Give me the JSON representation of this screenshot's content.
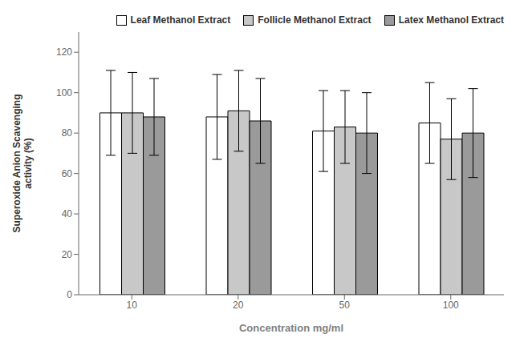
{
  "chart_data": {
    "type": "bar",
    "categories": [
      "10",
      "20",
      "50",
      "100"
    ],
    "series": [
      {
        "name": "Leaf Methanol Extract",
        "color": "#ffffff",
        "values": [
          90,
          88,
          81,
          85
        ],
        "errors": [
          21,
          21,
          20,
          20
        ]
      },
      {
        "name": "Follicle Methanol Extract",
        "color": "#c8c8c8",
        "values": [
          90,
          91,
          83,
          77
        ],
        "errors": [
          20,
          20,
          18,
          20
        ]
      },
      {
        "name": "Latex Methanol Extract",
        "color": "#9a9a9a",
        "values": [
          88,
          86,
          80,
          80
        ],
        "errors": [
          19,
          21,
          20,
          22
        ]
      }
    ],
    "xlabel": "Concentration mg/ml",
    "ylabel": "Superoxide Anion Scavenging\nactivity (%)",
    "ylim": [
      0,
      130
    ],
    "yticks": [
      0,
      20,
      40,
      60,
      80,
      100,
      120
    ],
    "legend": "upper right",
    "grid": false
  }
}
